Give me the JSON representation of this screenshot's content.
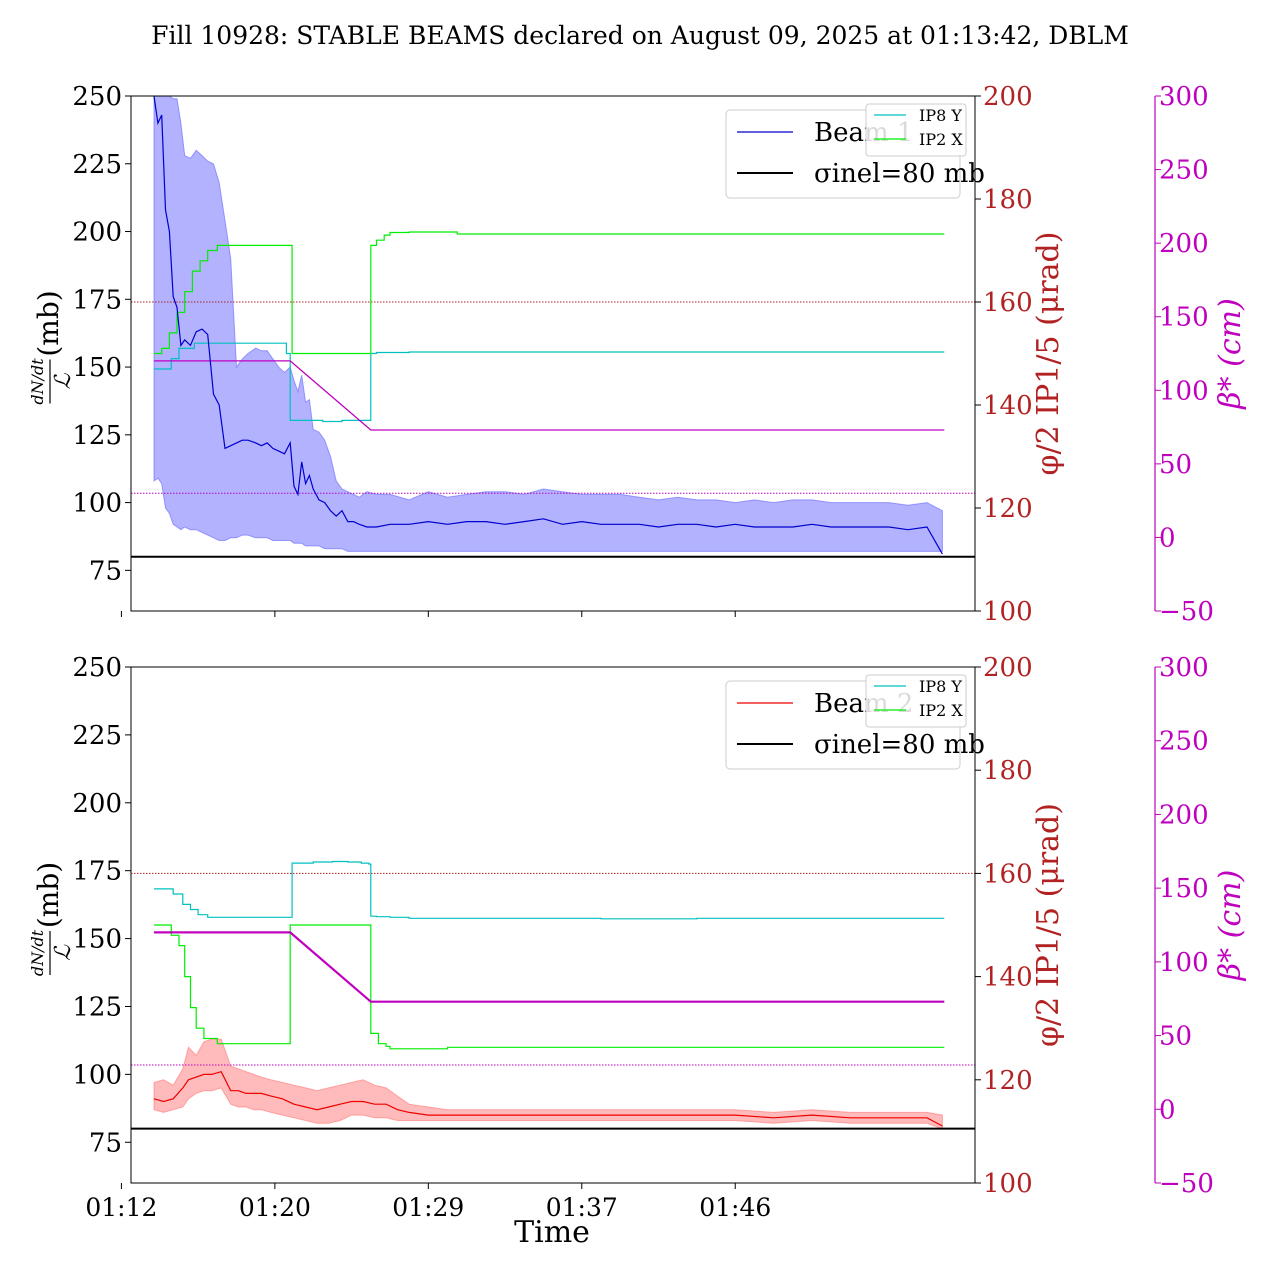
{
  "title": "Fill 10928: STABLE BEAMS declared on August 09, 2025 at 01:13:42, DBLM",
  "xlabel": "Time",
  "x_ticks": [
    "01:12",
    "01:20",
    "01:29",
    "01:37",
    "01:46"
  ],
  "chart_data": [
    {
      "type": "line",
      "panel": "top",
      "ylabel": "dN/dt / L (mb)",
      "ylim": [
        60,
        250
      ],
      "y_ticks": [
        75,
        100,
        125,
        150,
        175,
        200,
        225,
        250
      ],
      "right_axis_1": {
        "label": "φ/2 IP1/5 (μrad)",
        "ylim": [
          100,
          200
        ],
        "ticks": [
          100,
          120,
          140,
          160,
          180,
          200
        ],
        "color": "#b22222"
      },
      "right_axis_2": {
        "label": "β* (cm)",
        "ylim": [
          -50,
          300
        ],
        "ticks": [
          -50,
          0,
          50,
          100,
          150,
          200,
          250,
          300
        ],
        "color": "#bf00bf"
      },
      "reference_line": {
        "name": "σinel=80 mb",
        "value": 80,
        "color": "#000000"
      },
      "ref_phi_line": {
        "value_urad": 160,
        "color": "#b22222"
      },
      "ref_beta_line": {
        "value_cm": 30,
        "color": "#bf00bf"
      },
      "legend_main": [
        "Beam 1",
        "σinel=80 mb"
      ],
      "legend_small": [
        "IP8 Y",
        "IP2 X"
      ],
      "x_unit": "minutes after 01:12",
      "beam": {
        "name": "Beam 1",
        "color": "#0000cc",
        "fill": "#6666ff",
        "x": [
          1.7,
          1.9,
          2.1,
          2.3,
          2.5,
          2.7,
          2.9,
          3.1,
          3.3,
          3.6,
          3.9,
          4.2,
          4.5,
          4.8,
          5.1,
          5.4,
          5.7,
          6.0,
          6.3,
          6.6,
          7.0,
          7.3,
          7.6,
          7.9,
          8.2,
          8.5,
          8.8,
          9.0,
          9.2,
          9.4,
          9.6,
          9.8,
          10.0,
          10.3,
          10.6,
          10.9,
          11.2,
          11.5,
          11.8,
          12.1,
          12.4,
          12.8,
          13.3,
          14.0,
          15.0,
          16.0,
          17.0,
          18.0,
          19.0,
          20.0,
          21.0,
          22.0,
          23.0,
          24.0,
          25.0,
          26.0,
          27.0,
          28.0,
          29.0,
          30.0,
          31.0,
          32.0,
          33.0,
          34.0,
          35.0,
          36.0,
          37.0,
          38.0,
          39.0,
          40.0,
          41.0,
          42.0,
          42.8
        ],
        "y": [
          250,
          240,
          243,
          208,
          200,
          176,
          172,
          158,
          160,
          158,
          163,
          164,
          162,
          140,
          136,
          120,
          121,
          122,
          123,
          123,
          122,
          121,
          122,
          120,
          119,
          118,
          122,
          106,
          103,
          115,
          107,
          110,
          105,
          101,
          100,
          97,
          95,
          97,
          93,
          93,
          92,
          91,
          91,
          92,
          92,
          93,
          92,
          93,
          93,
          92,
          93,
          94,
          92,
          93,
          92,
          92,
          92,
          91,
          92,
          92,
          91,
          92,
          91,
          91,
          91,
          92,
          91,
          91,
          91,
          91,
          90,
          91,
          81
        ],
        "upper": [
          250,
          250,
          250,
          250,
          250,
          249,
          249,
          240,
          228,
          227,
          230,
          228,
          226,
          225,
          218,
          204,
          190,
          150,
          153,
          155,
          157,
          156,
          156,
          153,
          150,
          148,
          150,
          145,
          141,
          147,
          137,
          138,
          127,
          126,
          123,
          117,
          108,
          105,
          104,
          103,
          102,
          104,
          103,
          103,
          101,
          104,
          102,
          103,
          104,
          104,
          103,
          105,
          104,
          103,
          103,
          103,
          102,
          101,
          102,
          101,
          101,
          100,
          101,
          100,
          101,
          101,
          100,
          100,
          100,
          100,
          99,
          100,
          97
        ],
        "lower": [
          108,
          109,
          107,
          98,
          96,
          92,
          91,
          90,
          91,
          90,
          90,
          89,
          88,
          87,
          86,
          86,
          87,
          87,
          88,
          88,
          87,
          87,
          87,
          86,
          86,
          86,
          86,
          85,
          85,
          85,
          84,
          84,
          84,
          84,
          83,
          83,
          83,
          83,
          82,
          82,
          82,
          82,
          82,
          82,
          82,
          82,
          82,
          82,
          82,
          82,
          82,
          82,
          82,
          82,
          82,
          82,
          82,
          82,
          82,
          82,
          82,
          82,
          82,
          82,
          82,
          82,
          82,
          82,
          82,
          82,
          82,
          82,
          82
        ]
      },
      "ip8_y": {
        "name": "IP8 Y",
        "color": "#00c0c0",
        "x": [
          1.7,
          2.2,
          2.6,
          3.0,
          3.4,
          3.8,
          4.2,
          4.6,
          5.2,
          7.0,
          8.0,
          8.6,
          8.8,
          9.5,
          10.5,
          11.5,
          12.2,
          12.8,
          13.0,
          13.3,
          14.0,
          15.0,
          20.0,
          30.0,
          35.0,
          40.0,
          42.9
        ],
        "y_urad": [
          147,
          147,
          149,
          151,
          151,
          152,
          152,
          152,
          152,
          152,
          152,
          150,
          137,
          137,
          136.8,
          137,
          137,
          137,
          150,
          150.2,
          150.2,
          150.3,
          150.3,
          150.3,
          150.3,
          150.3,
          150.3
        ]
      },
      "ip2_x": {
        "name": "IP2 X",
        "color": "#00ee00",
        "x": [
          1.7,
          2.1,
          2.5,
          2.9,
          3.3,
          3.7,
          4.1,
          4.5,
          5.0,
          6.0,
          7.0,
          8.0,
          8.8,
          8.9,
          10.0,
          11.0,
          12.0,
          12.8,
          13.0,
          13.3,
          13.7,
          14.0,
          15.0,
          16.0,
          17.5,
          20.0,
          30.0,
          40.0,
          42.9
        ],
        "y_urad": [
          150,
          151,
          154,
          158,
          162,
          166,
          168,
          170,
          171,
          171,
          171,
          171,
          171,
          150,
          150,
          150,
          150,
          150,
          171,
          172,
          173,
          173.5,
          173.6,
          173.6,
          173.2,
          173.2,
          173.2,
          173.2,
          173.2
        ]
      },
      "beta": {
        "name": "β*",
        "color": "#bf00bf",
        "x": [
          1.7,
          8.8,
          13.0,
          42.9
        ],
        "y_cm": [
          120,
          120,
          73,
          73
        ]
      }
    },
    {
      "type": "line",
      "panel": "bottom",
      "ylabel": "dN/dt / L (mb)",
      "ylim": [
        60,
        250
      ],
      "y_ticks": [
        75,
        100,
        125,
        150,
        175,
        200,
        225,
        250
      ],
      "right_axis_1": {
        "label": "φ/2 IP1/5 (μrad)",
        "ylim": [
          100,
          200
        ],
        "ticks": [
          100,
          120,
          140,
          160,
          180,
          200
        ],
        "color": "#b22222"
      },
      "right_axis_2": {
        "label": "β* (cm)",
        "ylim": [
          -50,
          300
        ],
        "ticks": [
          -50,
          0,
          50,
          100,
          150,
          200,
          250,
          300
        ],
        "color": "#bf00bf"
      },
      "reference_line": {
        "name": "σinel=80 mb",
        "value": 80,
        "color": "#000000"
      },
      "ref_phi_line": {
        "value_urad": 160,
        "color": "#b22222"
      },
      "ref_beta_line": {
        "value_cm": 30,
        "color": "#bf00bf"
      },
      "legend_main": [
        "Beam 2",
        "σinel=80 mb"
      ],
      "legend_small": [
        "IP8 Y",
        "IP2 X"
      ],
      "x_unit": "minutes after 01:12",
      "beam": {
        "name": "Beam 2",
        "color": "#ee0000",
        "fill": "#ff7777",
        "x": [
          1.7,
          2.2,
          2.7,
          3.2,
          3.5,
          3.9,
          4.3,
          4.7,
          5.2,
          5.7,
          6.1,
          6.5,
          6.9,
          7.3,
          7.8,
          8.4,
          9.0,
          9.6,
          10.2,
          10.8,
          11.4,
          12.0,
          12.6,
          13.2,
          13.8,
          14.4,
          15.0,
          16.0,
          17.0,
          18.0,
          19.0,
          20.0,
          22.0,
          24.0,
          26.0,
          28.0,
          30.0,
          32.0,
          34.0,
          36.0,
          38.0,
          40.0,
          42.0,
          42.8
        ],
        "y": [
          91,
          90,
          91,
          95,
          98,
          99,
          100,
          100,
          101,
          94,
          94,
          93,
          93,
          93,
          92,
          91,
          89,
          88,
          87,
          88,
          89,
          90,
          90,
          89,
          89,
          87,
          86,
          85,
          85,
          85,
          85,
          85,
          85,
          85,
          85,
          85,
          85,
          85,
          84,
          85,
          84,
          84,
          84,
          81
        ],
        "upper": [
          97,
          98,
          96,
          102,
          110,
          107,
          112,
          113,
          113,
          103,
          102,
          101,
          100,
          99,
          98,
          97,
          96,
          95,
          94,
          95,
          96,
          97,
          98,
          96,
          95,
          92,
          89,
          88,
          87,
          87,
          87,
          87,
          87,
          87,
          87,
          87,
          87,
          87,
          86,
          87,
          86,
          86,
          86,
          85
        ],
        "lower": [
          87,
          86,
          87,
          88,
          91,
          93,
          94,
          94,
          95,
          89,
          88,
          88,
          87,
          87,
          86,
          85,
          84,
          83,
          82,
          82,
          83,
          85,
          85,
          84,
          84,
          83,
          83,
          83,
          83,
          83,
          83,
          83,
          83,
          83,
          83,
          83,
          83,
          83,
          82,
          83,
          82,
          82,
          82,
          80
        ]
      },
      "ip8_y": {
        "name": "IP8 Y",
        "color": "#00c0c0",
        "x": [
          1.7,
          2.2,
          2.7,
          3.2,
          3.6,
          4.0,
          4.5,
          5.0,
          8.8,
          8.9,
          10.0,
          11.0,
          11.8,
          12.5,
          12.9,
          13.0,
          13.3,
          14.0,
          15.0,
          20.0,
          25.0,
          30.0,
          35.0,
          40.0,
          42.9
        ],
        "y_urad": [
          157,
          157,
          156,
          154,
          153,
          152,
          151.5,
          151.5,
          151.5,
          162,
          162.2,
          162.3,
          162.2,
          162,
          161.8,
          151.7,
          151.6,
          151.5,
          151.3,
          151.3,
          151.2,
          151.3,
          151.3,
          151.3,
          151.3
        ]
      },
      "ip2_x": {
        "name": "IP2 X",
        "color": "#00ee00",
        "x": [
          1.7,
          2.2,
          2.6,
          3.0,
          3.3,
          3.6,
          3.9,
          4.3,
          5.0,
          6.0,
          8.7,
          8.8,
          10.0,
          11.0,
          12.0,
          12.8,
          13.0,
          13.4,
          13.8,
          14.0,
          15.0,
          16.0,
          17.0,
          20.0,
          30.0,
          40.0,
          42.9
        ],
        "y_urad": [
          150,
          150,
          148,
          146,
          140,
          134,
          130,
          128,
          127,
          127,
          127,
          150,
          150,
          150,
          150,
          150,
          129,
          127,
          126.5,
          126,
          126,
          126,
          126.3,
          126.3,
          126.3,
          126.3,
          126.3
        ]
      },
      "beta": {
        "name": "β*",
        "color": "#bf00bf",
        "x": [
          1.7,
          8.8,
          13.0,
          42.9
        ],
        "y_cm": [
          120,
          120,
          73,
          73
        ]
      }
    }
  ]
}
